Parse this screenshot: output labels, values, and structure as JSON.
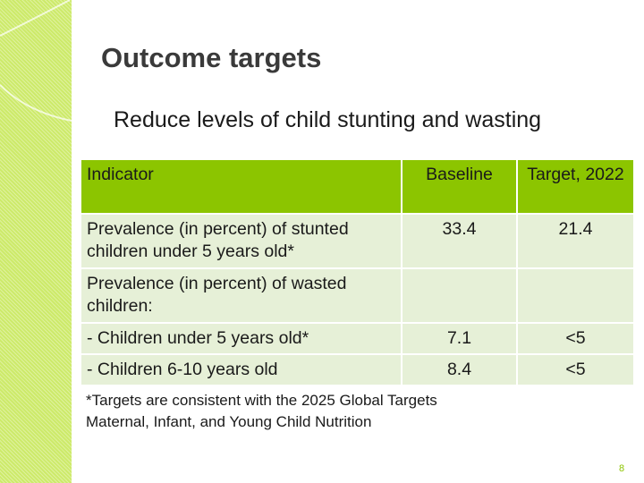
{
  "slide": {
    "title": "Outcome targets",
    "subtitle": "Reduce levels of child stunting and wasting",
    "page_number": "8",
    "accent_color": "#8cc500",
    "band_color": "#cdea6a"
  },
  "table": {
    "headers": [
      "Indicator",
      "Baseline",
      "Target, 2022"
    ],
    "rows": [
      {
        "indicator": "Prevalence (in percent) of stunted children under 5 years old*",
        "baseline": "33.4",
        "target": "21.4"
      },
      {
        "indicator": "Prevalence (in percent) of wasted children:",
        "baseline": "",
        "target": ""
      },
      {
        "indicator": "- Children under 5 years old*",
        "baseline": "7.1",
        "target": "<5"
      },
      {
        "indicator": "- Children 6-10 years old",
        "baseline": "8.4",
        "target": "<5"
      }
    ]
  },
  "footnote": {
    "line1": "*Targets are consistent with the 2025 Global Targets",
    "line2": "Maternal, Infant, and Young Child Nutrition"
  }
}
